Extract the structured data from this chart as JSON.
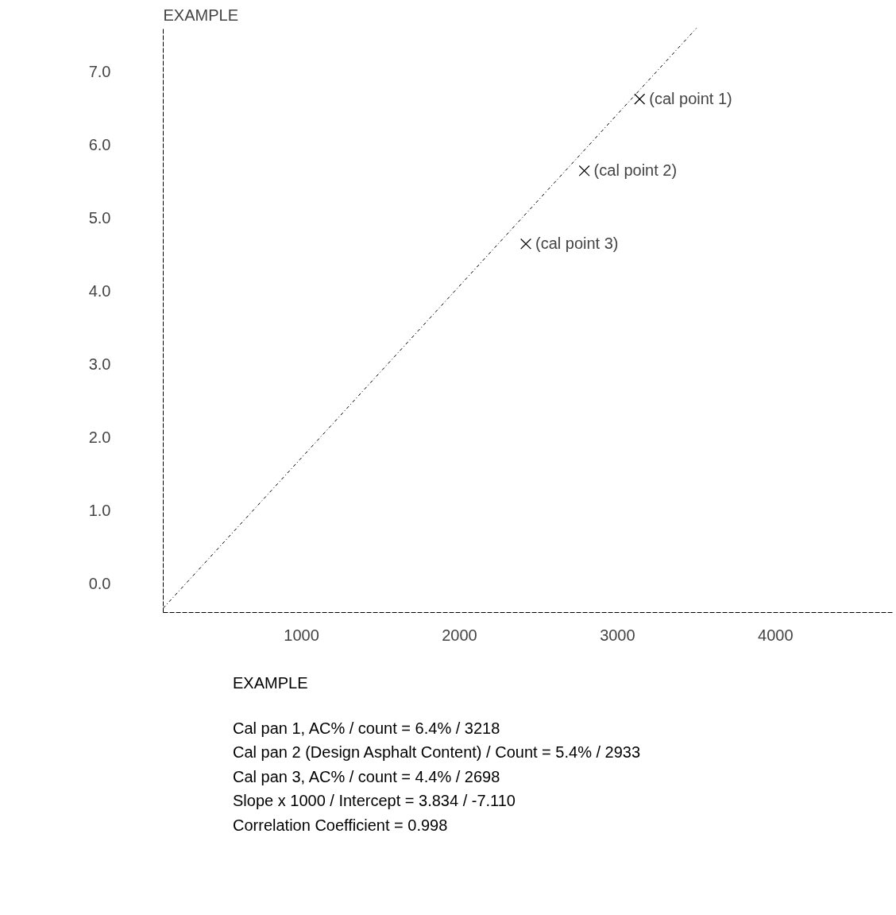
{
  "chart_data": {
    "type": "scatter",
    "title": "EXAMPLE",
    "series": [
      {
        "color": "#000000",
        "marker": "cross",
        "x": [
          3140,
          2790,
          2420
        ],
        "values": [
          6.62,
          5.64,
          4.64
        ]
      },
      {
        "type": "line",
        "color": "#000000",
        "line_style": "dashed",
        "x": [
          125,
          3500
        ],
        "values": [
          -0.34,
          7.59
        ]
      }
    ],
    "xlim": [
      125,
      4740
    ],
    "ylim": [
      -0.4,
      7.6
    ],
    "xticks": [
      1000,
      2000,
      3000,
      4000
    ],
    "yticks": [
      {
        "value": 0,
        "label": "0.0"
      },
      {
        "value": 1,
        "label": "1.0"
      },
      {
        "value": 2,
        "label": "2.0"
      },
      {
        "value": 3,
        "label": "3.0"
      },
      {
        "value": 4,
        "label": "4.0"
      },
      {
        "value": 5,
        "label": "5.0"
      },
      {
        "value": 6,
        "label": "6.0"
      },
      {
        "value": 7,
        "label": "7.0"
      }
    ],
    "grid": false,
    "annotations": [
      {
        "text": "(cal point 1)",
        "x": 3140,
        "y": 6.62
      },
      {
        "text": "(cal point 2)",
        "x": 2790,
        "y": 5.64
      },
      {
        "text": "(cal point 3)",
        "x": 2420,
        "y": 4.64
      },
      "EXAMPLE",
      "Cal pan 1, AC% / count = 6.4% / 3218",
      "Cal pan 2 (Design Asphalt Content) / Count = 5.4% / 2933",
      "Cal pan 3, AC% / count = 4.4% / 2698",
      "Slope x 1000 / Intercept = 3.834 / -7.110",
      "Correlation Coefficient = 0.998"
    ]
  }
}
